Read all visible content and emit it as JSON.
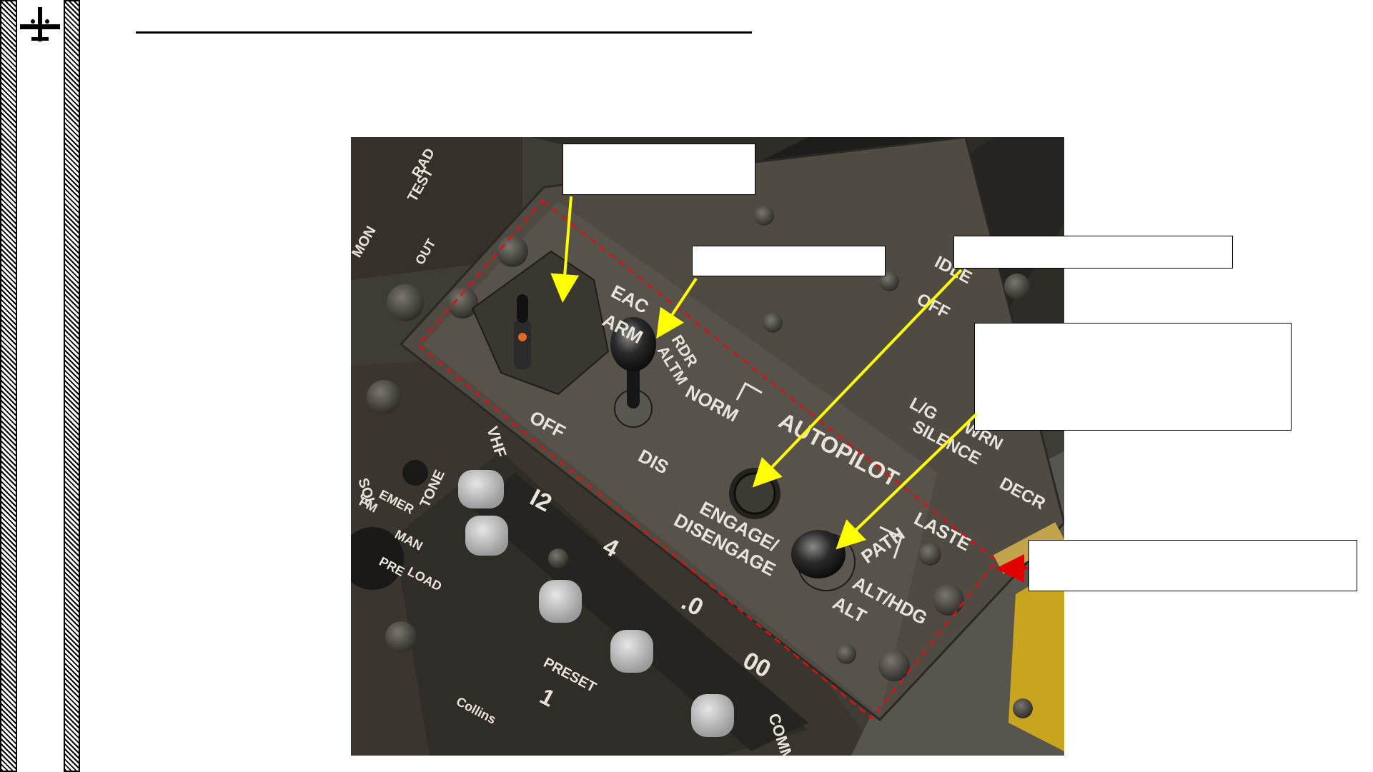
{
  "document": {
    "title": "",
    "logo_icon": "a10-aircraft-icon"
  },
  "figure": {
    "image_description_icon": "cockpit-panel-photo",
    "panel_labels": {
      "eac": "EAC",
      "arm": "ARM",
      "off": "OFF",
      "rdr": "RDR",
      "altm": "ALTM",
      "norm": "NORM",
      "dis": "DIS",
      "autopilot": "AUTOPILOT",
      "engage_disengage_1": "ENGAGE/",
      "engage_disengage_2": "DISENGAGE",
      "path": "PATH",
      "alt_hdg": "ALT/HDG",
      "alt": "ALT",
      "laste": "LASTE",
      "rad_test_1": "RAD",
      "rad_test_2": "TEST",
      "mon": "MON",
      "out": "OUT",
      "idle": "IDLE",
      "off2": "OFF",
      "lg_silence_1": "L/G",
      "lg_silence_2": "WRN",
      "lg_silence_3": "SILENCE",
      "decr": "DECR",
      "vhf": "VHF",
      "tone": "TONE",
      "squelch": "SQL",
      "emer": "EMER",
      "fm": "FM",
      "man": "MAN",
      "pre": "PRE",
      "load": "LOAD",
      "preset": "PRESET",
      "preset_value": "1",
      "freq_1": "I2",
      "freq_2": "4",
      "freq_3": ".0",
      "freq_4": "00",
      "collins": "Collins",
      "comm": "COMM"
    }
  },
  "callouts": [
    {
      "id": "callout-eac-switch",
      "text": ""
    },
    {
      "id": "callout-radar-altimeter",
      "text": ""
    },
    {
      "id": "callout-engage-button",
      "text": ""
    },
    {
      "id": "callout-mode-selector",
      "text": ""
    },
    {
      "id": "callout-laste-panel",
      "text": ""
    }
  ],
  "colors": {
    "arrow_yellow": "#ffff00",
    "arrow_red": "#e00000",
    "dashed_border": "#e01010"
  }
}
